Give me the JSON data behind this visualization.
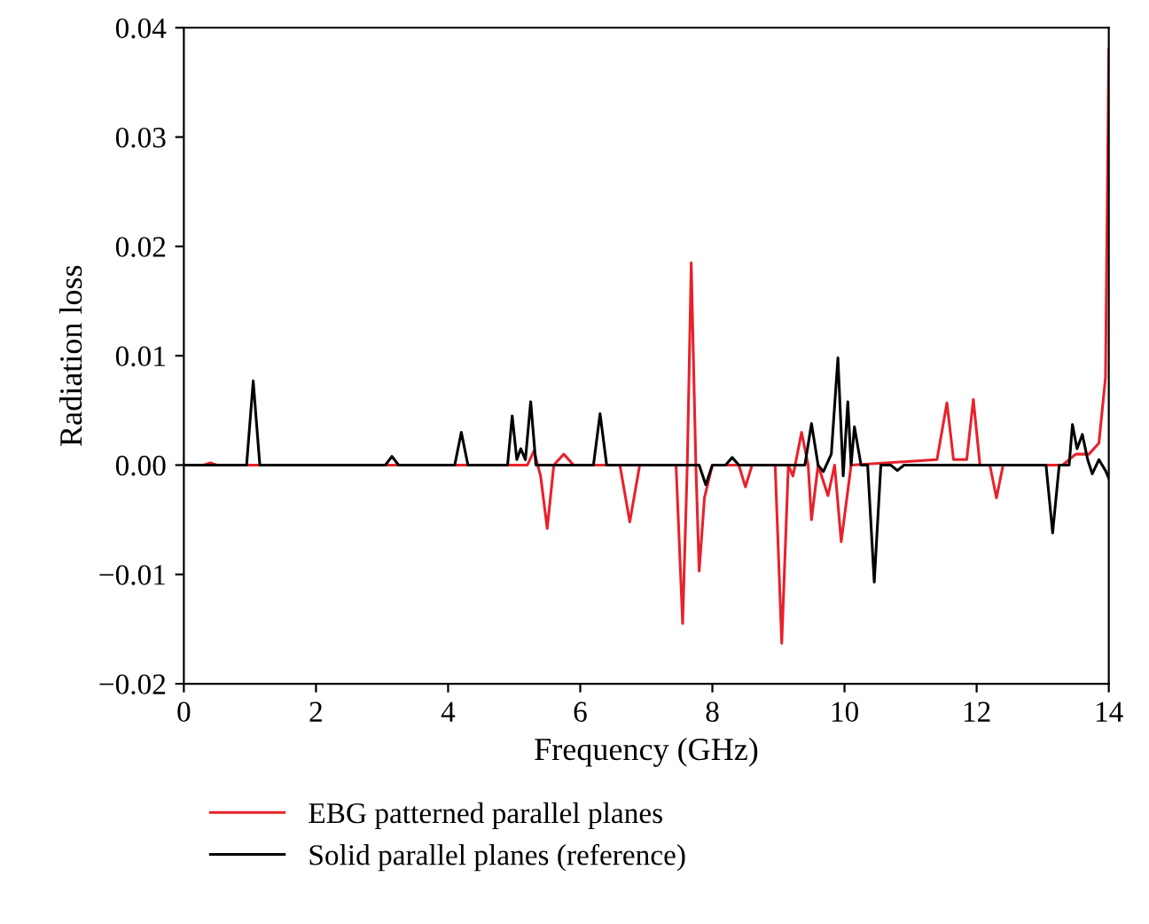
{
  "chart_data": {
    "type": "line",
    "xlabel": "Frequency (GHz)",
    "ylabel": "Radiation loss",
    "xlim": [
      0,
      14
    ],
    "ylim": [
      -0.02,
      0.04
    ],
    "xticks": [
      0,
      2,
      4,
      6,
      8,
      10,
      12,
      14
    ],
    "yticks": [
      {
        "value": -0.02,
        "label": "−0.02"
      },
      {
        "value": -0.01,
        "label": "−0.01"
      },
      {
        "value": 0,
        "label": "0.00"
      },
      {
        "value": 0.01,
        "label": "0.01"
      },
      {
        "value": 0.02,
        "label": "0.02"
      },
      {
        "value": 0.03,
        "label": "0.03"
      },
      {
        "value": 0.04,
        "label": "0.04"
      }
    ],
    "grid": false,
    "legend": "bottom left",
    "marker": "none",
    "line_style": "solid",
    "series": [
      {
        "name": "EBG patterned parallel planes",
        "color": "#e8212b",
        "x": [
          0,
          0.3,
          0.4,
          0.5,
          1.5,
          5.2,
          5.3,
          5.4,
          5.5,
          5.6,
          5.75,
          5.9,
          6.6,
          6.75,
          6.9,
          7.45,
          7.55,
          7.62,
          7.68,
          7.75,
          7.8,
          7.88,
          8.0,
          8.4,
          8.5,
          8.6,
          8.95,
          9.05,
          9.15,
          9.22,
          9.35,
          9.45,
          9.5,
          9.6,
          9.75,
          9.85,
          9.95,
          10.1,
          11.4,
          11.55,
          11.65,
          11.85,
          11.95,
          12.05,
          12.2,
          12.3,
          12.4,
          13.3,
          13.5,
          13.7,
          13.85,
          13.95,
          14.0
        ],
        "values": [
          0,
          0,
          0.0002,
          0,
          0,
          0,
          0.0013,
          -0.001,
          -0.0058,
          0,
          0.001,
          0,
          0,
          -0.0052,
          0,
          0,
          -0.0145,
          0,
          0.0185,
          0,
          -0.0097,
          -0.003,
          0,
          0,
          -0.002,
          0,
          0,
          -0.0163,
          0,
          -0.001,
          0.003,
          0,
          -0.005,
          0,
          -0.0028,
          0,
          -0.007,
          0,
          0.0005,
          0.0057,
          0.0005,
          0.0005,
          0.006,
          0,
          0,
          -0.003,
          0,
          0,
          0.001,
          0.001,
          0.002,
          0.008,
          0.038
        ]
      },
      {
        "name": "Solid parallel planes (reference)",
        "color": "#000000",
        "x": [
          0,
          0.95,
          1.05,
          1.15,
          3.05,
          3.15,
          3.25,
          4.1,
          4.2,
          4.3,
          4.9,
          4.97,
          5.04,
          5.1,
          5.17,
          5.25,
          5.33,
          6.2,
          6.3,
          6.4,
          7.8,
          7.9,
          8.0,
          8.2,
          8.3,
          8.4,
          9.4,
          9.5,
          9.6,
          9.68,
          9.8,
          9.9,
          9.98,
          10.05,
          10.1,
          10.15,
          10.25,
          10.35,
          10.45,
          10.55,
          10.7,
          10.8,
          10.9,
          13.05,
          13.15,
          13.25,
          13.4,
          13.45,
          13.52,
          13.6,
          13.68,
          13.75,
          13.85,
          13.95,
          14.0
        ],
        "values": [
          0,
          0,
          0.0077,
          0,
          0,
          0.0008,
          0,
          0,
          0.003,
          0,
          0,
          0.0045,
          0.0005,
          0.0015,
          0.0005,
          0.0058,
          0,
          0,
          0.0047,
          0,
          0,
          -0.0018,
          0,
          0,
          0.0007,
          0,
          0,
          0.0038,
          0,
          -0.0006,
          0.001,
          0.0098,
          -0.001,
          0.0058,
          0,
          0.0035,
          0,
          0,
          -0.0107,
          0,
          0,
          -0.0005,
          0,
          0,
          -0.0062,
          0,
          0,
          0.0037,
          0.0015,
          0.0028,
          0.0005,
          -0.0008,
          0.0005,
          -0.0005,
          -0.0012
        ]
      }
    ]
  }
}
